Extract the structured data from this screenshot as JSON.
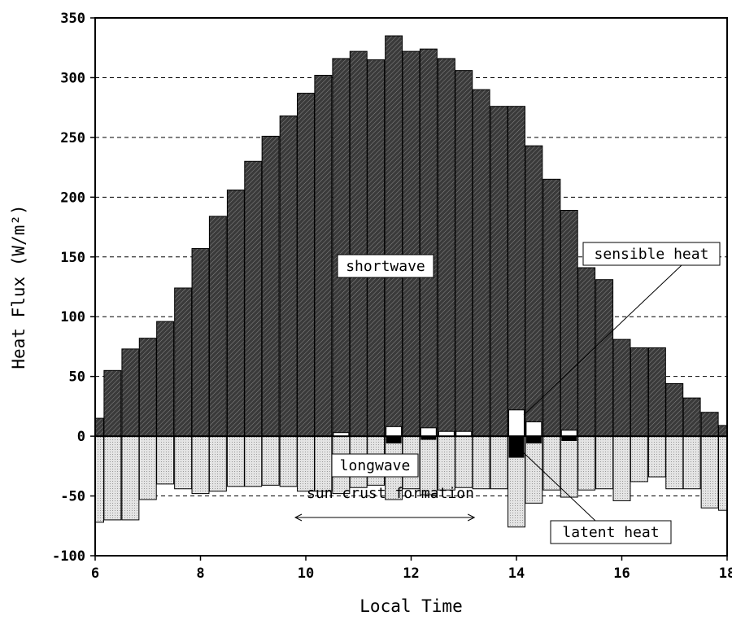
{
  "chart_data": {
    "type": "bar",
    "xlabel": "Local Time",
    "ylabel": "Heat Flux (W/m²)",
    "xlim": [
      6,
      18
    ],
    "ylim": [
      -100,
      350
    ],
    "x_ticks": [
      6,
      8,
      10,
      12,
      14,
      16,
      18
    ],
    "y_ticks": [
      -100,
      -50,
      0,
      50,
      100,
      150,
      200,
      250,
      300,
      350
    ],
    "grid": "horizontal dashed",
    "times": [
      6.0,
      6.33,
      6.67,
      7.0,
      7.33,
      7.67,
      8.0,
      8.33,
      8.67,
      9.0,
      9.33,
      9.67,
      10.0,
      10.33,
      10.67,
      11.0,
      11.33,
      11.67,
      12.0,
      12.33,
      12.67,
      13.0,
      13.33,
      13.67,
      14.0,
      14.33,
      14.67,
      15.0,
      15.33,
      15.67,
      16.0,
      16.33,
      16.67,
      17.0,
      17.33,
      17.67,
      18.0
    ],
    "series": [
      {
        "name": "shortwave",
        "values": [
          15,
          55,
          73,
          82,
          96,
          124,
          157,
          184,
          206,
          230,
          251,
          268,
          287,
          302,
          316,
          322,
          315,
          335,
          322,
          324,
          316,
          306,
          290,
          276,
          276,
          243,
          215,
          189,
          141,
          131,
          81,
          74,
          74,
          44,
          32,
          20,
          9
        ]
      },
      {
        "name": "longwave",
        "values": [
          -72,
          -70,
          -70,
          -53,
          -40,
          -44,
          -48,
          -46,
          -42,
          -42,
          -41,
          -42,
          -46,
          -46,
          -48,
          -43,
          -41,
          -53,
          -44,
          -49,
          -45,
          -43,
          -44,
          -44,
          -76,
          -56,
          -45,
          -51,
          -45,
          -44,
          -54,
          -38,
          -34,
          -44,
          -44,
          -60,
          -62
        ]
      },
      {
        "name": "sensible heat",
        "values": [
          0,
          0,
          0,
          0,
          0,
          0,
          0,
          0,
          0,
          0,
          0,
          0,
          0,
          0,
          3,
          0,
          0,
          8,
          0,
          7,
          4,
          4,
          0,
          0,
          22,
          12,
          0,
          5,
          0,
          0,
          0,
          0,
          0,
          0,
          0,
          0,
          0
        ]
      },
      {
        "name": "latent heat",
        "values": [
          0,
          0,
          0,
          0,
          0,
          0,
          0,
          0,
          0,
          0,
          0,
          0,
          0,
          0,
          0,
          0,
          0,
          -6,
          0,
          -3,
          0,
          0,
          0,
          0,
          -18,
          -6,
          0,
          -4,
          0,
          0,
          0,
          0,
          0,
          0,
          0,
          0,
          0
        ]
      }
    ],
    "annotations": {
      "shortwave": "shortwave",
      "longwave": "longwave",
      "sensible": "sensible heat",
      "latent": "latent heat",
      "sun_crust": "sun crust formation",
      "sun_crust_range": [
        9.8,
        13.2
      ]
    },
    "colors": {
      "shortwave": "#3a3a3a",
      "longwave": "#d9d9d9",
      "sensible": "#ffffff",
      "latent": "#000000"
    }
  }
}
